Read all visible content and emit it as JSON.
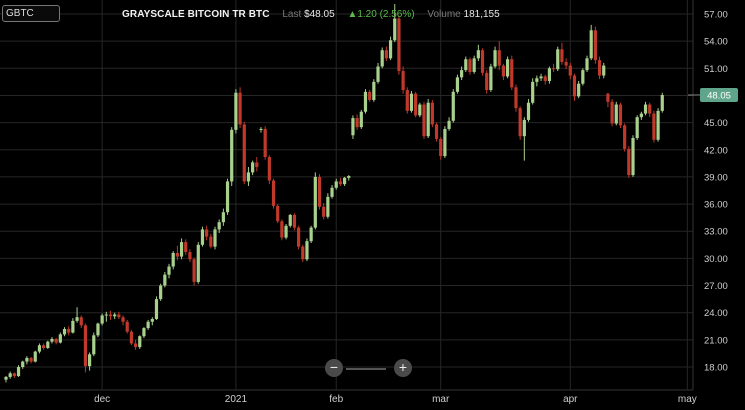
{
  "header": {
    "ticker": "GBTC",
    "name": "GRAYSCALE BITCOIN TR BTC",
    "last_label": "Last",
    "last_value": "$48.05",
    "change": "▲1.20 (2.56%)",
    "volume_label": "Volume",
    "volume_value": "181,155"
  },
  "price_tag": "48.05",
  "zoom": {
    "minus": "−",
    "plus": "+"
  },
  "colors": {
    "up": "#a9d18e",
    "down": "#c0392b",
    "tag": "#5fa58c",
    "change": "#5dbb4a"
  },
  "chart_data": {
    "type": "candlestick",
    "title": "GRAYSCALE BITCOIN TR BTC",
    "y_axis_side": "right",
    "ylim": [
      15.5,
      58.5
    ],
    "yticks": [
      "57.00",
      "54.00",
      "51.00",
      "48.00",
      "45.00",
      "42.00",
      "39.00",
      "36.00",
      "33.00",
      "30.00",
      "27.00",
      "24.00",
      "21.00",
      "18.00"
    ],
    "xticks": [
      "dec",
      "2021",
      "feb",
      "mar",
      "apr",
      "may"
    ],
    "xtick_index": [
      23,
      55,
      79,
      104,
      135,
      163
    ],
    "grid": true,
    "last_price": 48.05,
    "candles": [
      [
        16.6,
        17.0,
        16.3,
        16.9
      ],
      [
        16.9,
        17.5,
        16.7,
        17.3
      ],
      [
        17.3,
        17.4,
        16.8,
        17.0
      ],
      [
        17.0,
        18.2,
        16.9,
        18.0
      ],
      [
        18.0,
        18.7,
        17.8,
        18.6
      ],
      [
        18.6,
        19.2,
        18.3,
        19.0
      ],
      [
        19.0,
        19.1,
        18.4,
        18.6
      ],
      [
        18.6,
        19.8,
        18.5,
        19.7
      ],
      [
        19.7,
        20.6,
        19.5,
        20.4
      ],
      [
        20.4,
        20.6,
        19.9,
        20.1
      ],
      [
        20.1,
        20.9,
        20.0,
        20.8
      ],
      [
        20.8,
        21.3,
        20.6,
        21.1
      ],
      [
        21.1,
        21.2,
        20.5,
        20.7
      ],
      [
        20.7,
        21.8,
        20.6,
        21.6
      ],
      [
        21.6,
        22.4,
        21.4,
        22.2
      ],
      [
        22.2,
        22.5,
        21.5,
        21.8
      ],
      [
        21.8,
        23.4,
        21.7,
        23.1
      ],
      [
        23.1,
        24.6,
        22.9,
        23.5
      ],
      [
        23.5,
        23.7,
        22.3,
        22.6
      ],
      [
        22.6,
        22.8,
        17.4,
        18.1
      ],
      [
        18.1,
        19.6,
        17.6,
        19.4
      ],
      [
        19.4,
        21.8,
        19.2,
        21.5
      ],
      [
        21.5,
        22.9,
        21.3,
        22.8
      ],
      [
        22.8,
        23.9,
        22.6,
        23.7
      ],
      [
        23.7,
        24.1,
        23.0,
        23.8
      ],
      [
        23.8,
        24.2,
        23.2,
        23.6
      ],
      [
        23.6,
        24.0,
        23.3,
        23.8
      ],
      [
        23.8,
        24.1,
        23.3,
        23.5
      ],
      [
        23.5,
        23.7,
        22.6,
        23.0
      ],
      [
        23.0,
        23.2,
        21.7,
        21.9
      ],
      [
        21.9,
        22.1,
        20.4,
        20.6
      ],
      [
        20.6,
        21.0,
        19.9,
        20.2
      ],
      [
        20.2,
        21.5,
        20.0,
        21.4
      ],
      [
        21.4,
        22.4,
        21.2,
        22.3
      ],
      [
        22.3,
        23.2,
        22.1,
        23.0
      ],
      [
        23.0,
        23.5,
        22.6,
        23.3
      ],
      [
        23.3,
        25.8,
        23.2,
        25.5
      ],
      [
        25.5,
        27.2,
        25.3,
        27.0
      ],
      [
        27.0,
        28.5,
        26.8,
        28.2
      ],
      [
        28.2,
        29.4,
        27.8,
        29.1
      ],
      [
        29.1,
        30.8,
        28.8,
        30.6
      ],
      [
        30.6,
        31.4,
        29.8,
        30.2
      ],
      [
        30.2,
        32.2,
        29.9,
        31.8
      ],
      [
        31.8,
        32.1,
        30.4,
        30.7
      ],
      [
        30.7,
        31.0,
        29.6,
        29.9
      ],
      [
        29.9,
        30.1,
        27.0,
        27.4
      ],
      [
        27.4,
        31.8,
        27.2,
        31.5
      ],
      [
        31.5,
        33.5,
        31.3,
        33.2
      ],
      [
        33.2,
        33.6,
        32.0,
        32.4
      ],
      [
        32.4,
        32.7,
        31.1,
        31.3
      ],
      [
        31.3,
        33.5,
        31.0,
        33.2
      ],
      [
        33.2,
        34.3,
        32.8,
        34.0
      ],
      [
        34.0,
        35.5,
        33.6,
        35.1
      ],
      [
        35.1,
        38.8,
        34.8,
        38.5
      ],
      [
        38.5,
        44.5,
        38.0,
        44.2
      ],
      [
        44.2,
        48.7,
        43.8,
        48.3
      ],
      [
        48.3,
        48.9,
        44.4,
        44.8
      ],
      [
        44.8,
        45.1,
        38.2,
        38.5
      ],
      [
        38.5,
        40.1,
        38.0,
        39.5
      ],
      [
        39.5,
        40.8,
        39.2,
        40.6
      ],
      [
        40.6,
        41.2,
        39.6,
        40.1
      ],
      [
        44.2,
        44.5,
        43.9,
        44.3
      ],
      [
        44.3,
        44.6,
        40.9,
        41.2
      ],
      [
        41.2,
        41.4,
        38.2,
        38.6
      ],
      [
        38.6,
        38.8,
        35.5,
        35.8
      ],
      [
        35.8,
        36.0,
        33.9,
        34.1
      ],
      [
        34.1,
        34.3,
        32.0,
        32.3
      ],
      [
        32.3,
        33.8,
        32.1,
        33.6
      ],
      [
        33.6,
        34.9,
        33.4,
        34.8
      ],
      [
        34.8,
        35.0,
        33.1,
        33.4
      ],
      [
        33.4,
        33.6,
        31.0,
        31.3
      ],
      [
        31.3,
        31.5,
        29.6,
        29.9
      ],
      [
        29.9,
        32.2,
        29.7,
        31.9
      ],
      [
        31.9,
        33.6,
        31.7,
        33.4
      ],
      [
        33.4,
        39.5,
        33.2,
        39.0
      ],
      [
        39.0,
        39.3,
        35.4,
        35.7
      ],
      [
        35.7,
        36.1,
        34.3,
        34.6
      ],
      [
        34.6,
        37.2,
        34.4,
        36.8
      ],
      [
        36.8,
        38.1,
        36.6,
        37.8
      ],
      [
        37.8,
        38.8,
        37.6,
        38.5
      ],
      [
        38.5,
        38.9,
        38.0,
        38.2
      ],
      [
        38.2,
        39.0,
        38.0,
        38.9
      ],
      [
        38.9,
        39.2,
        38.6,
        39.1
      ],
      [
        43.6,
        45.8,
        43.2,
        45.5
      ],
      [
        45.5,
        45.9,
        44.2,
        44.5
      ],
      [
        44.5,
        46.4,
        44.3,
        46.2
      ],
      [
        46.2,
        48.7,
        46.0,
        48.4
      ],
      [
        48.4,
        48.6,
        47.3,
        47.5
      ],
      [
        47.5,
        49.8,
        47.3,
        49.5
      ],
      [
        49.5,
        51.6,
        49.3,
        51.2
      ],
      [
        51.2,
        53.3,
        51.0,
        53.0
      ],
      [
        53.0,
        53.4,
        51.8,
        52.1
      ],
      [
        52.1,
        54.5,
        51.9,
        54.1
      ],
      [
        54.1,
        58.1,
        53.9,
        56.5
      ],
      [
        56.5,
        56.8,
        50.3,
        50.7
      ],
      [
        50.7,
        51.2,
        48.2,
        48.6
      ],
      [
        48.6,
        48.9,
        46.0,
        46.3
      ],
      [
        46.3,
        48.5,
        46.1,
        48.2
      ],
      [
        48.2,
        48.4,
        45.6,
        45.8
      ],
      [
        45.8,
        47.2,
        45.6,
        47.0
      ],
      [
        47.0,
        47.3,
        43.2,
        43.5
      ],
      [
        43.5,
        47.6,
        43.3,
        47.2
      ],
      [
        47.2,
        47.5,
        44.5,
        44.8
      ],
      [
        44.8,
        45.0,
        42.9,
        43.2
      ],
      [
        43.2,
        43.4,
        40.9,
        41.3
      ],
      [
        41.3,
        44.6,
        41.1,
        44.3
      ],
      [
        44.3,
        45.6,
        44.1,
        45.2
      ],
      [
        45.2,
        48.7,
        45.0,
        48.4
      ],
      [
        48.4,
        50.3,
        48.2,
        50.0
      ],
      [
        50.0,
        51.2,
        49.7,
        50.8
      ],
      [
        50.8,
        52.3,
        50.6,
        52.0
      ],
      [
        52.0,
        52.2,
        50.3,
        50.6
      ],
      [
        50.6,
        52.4,
        50.4,
        52.1
      ],
      [
        52.1,
        53.6,
        51.8,
        53.0
      ],
      [
        53.0,
        53.2,
        50.2,
        50.5
      ],
      [
        50.5,
        50.8,
        48.2,
        48.6
      ],
      [
        48.6,
        51.5,
        48.4,
        51.2
      ],
      [
        51.2,
        53.4,
        51.0,
        53.0
      ],
      [
        53.0,
        54.0,
        50.8,
        51.3
      ],
      [
        51.3,
        51.5,
        49.7,
        50.1
      ],
      [
        50.1,
        52.3,
        49.9,
        52.0
      ],
      [
        52.0,
        52.4,
        48.6,
        48.9
      ],
      [
        48.9,
        49.2,
        46.2,
        46.6
      ],
      [
        46.6,
        46.8,
        43.1,
        43.5
      ],
      [
        43.5,
        45.6,
        40.8,
        45.3
      ],
      [
        45.3,
        47.6,
        45.1,
        47.2
      ],
      [
        47.2,
        49.9,
        47.0,
        49.5
      ],
      [
        49.5,
        50.2,
        49.0,
        49.9
      ],
      [
        49.9,
        50.4,
        49.6,
        50.1
      ],
      [
        50.1,
        50.3,
        49.2,
        49.6
      ],
      [
        49.6,
        51.2,
        49.3,
        51.0
      ],
      [
        51.0,
        51.5,
        50.6,
        50.9
      ],
      [
        50.9,
        53.4,
        50.7,
        53.1
      ],
      [
        53.1,
        53.8,
        51.4,
        51.7
      ],
      [
        51.7,
        52.1,
        50.9,
        51.3
      ],
      [
        51.3,
        51.6,
        49.8,
        50.2
      ],
      [
        50.2,
        50.4,
        47.4,
        47.9
      ],
      [
        47.9,
        49.6,
        47.7,
        49.3
      ],
      [
        49.3,
        51.0,
        49.1,
        50.8
      ],
      [
        50.8,
        52.4,
        50.6,
        52.1
      ],
      [
        52.1,
        55.8,
        51.9,
        55.2
      ],
      [
        55.2,
        55.6,
        51.5,
        51.9
      ],
      [
        51.9,
        52.3,
        49.8,
        50.2
      ],
      [
        50.2,
        51.6,
        49.9,
        51.3
      ],
      [
        48.2,
        48.3,
        46.7,
        47.3
      ],
      [
        47.3,
        47.6,
        44.6,
        44.9
      ],
      [
        44.9,
        47.3,
        44.7,
        47.0
      ],
      [
        47.0,
        47.2,
        44.4,
        44.7
      ],
      [
        44.7,
        44.9,
        41.8,
        42.1
      ],
      [
        42.1,
        42.4,
        38.9,
        39.2
      ],
      [
        39.2,
        43.6,
        39.0,
        43.3
      ],
      [
        43.3,
        45.8,
        43.1,
        45.6
      ],
      [
        45.6,
        46.2,
        45.3,
        46.0
      ],
      [
        46.0,
        47.3,
        45.8,
        47.0
      ],
      [
        47.0,
        47.2,
        45.6,
        46.0
      ],
      [
        46.0,
        46.3,
        42.8,
        43.1
      ],
      [
        43.1,
        46.6,
        42.9,
        46.3
      ],
      [
        46.3,
        48.3,
        46.1,
        48.05
      ]
    ]
  }
}
